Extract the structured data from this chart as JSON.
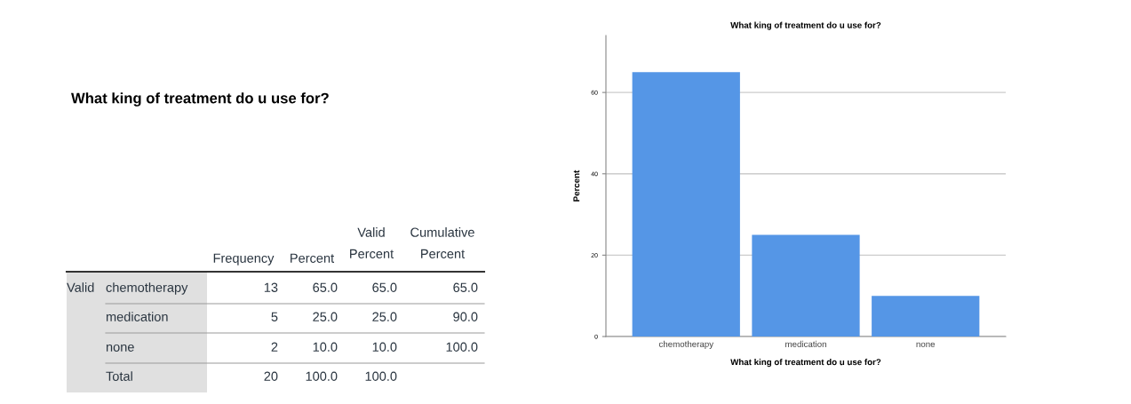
{
  "chart_data": [
    {
      "type": "other",
      "title": "What king of treatment do u use for?",
      "annotations": [
        "Frequency",
        "Percent",
        "Valid\nPercent",
        "Cumulative\nPercent",
        "Valid",
        "chemotherapy",
        "13",
        "65.0",
        "65.0",
        "65.0",
        "medication",
        "5",
        "25.0",
        "25.0",
        "90.0",
        "none",
        "2",
        "10.0",
        "10.0",
        "100.0",
        "Total",
        "20",
        "100.0",
        "100.0"
      ]
    },
    {
      "type": "bar",
      "title": "What king of treatment do u use for?",
      "xlabel": "What king of treatment do u use for?",
      "ylabel": "Percent",
      "categories": [
        "chemotherapy",
        "medication",
        "none"
      ],
      "values": [
        65,
        25,
        10
      ],
      "color": "#5596e6",
      "ylim": [
        0,
        74
      ],
      "yticks": [
        0,
        20,
        40,
        60
      ],
      "grid": "y"
    }
  ]
}
